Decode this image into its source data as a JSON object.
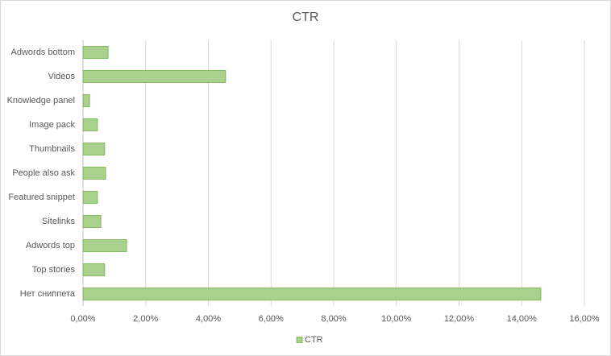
{
  "chart_data": {
    "type": "bar",
    "orientation": "horizontal",
    "title": "CTR",
    "categories": [
      "Adwords bottom",
      "Videos",
      "Knowledge panel",
      "Image pack",
      "Thumbnails",
      "People also ask",
      "Featured snippet",
      "Sitelinks",
      "Adwords top",
      "Top stories",
      "Нет сниппета"
    ],
    "series": [
      {
        "name": "CTR",
        "color": "#a9d18e",
        "edge_color": "#70ad47",
        "values": [
          0.8,
          4.55,
          0.21,
          0.46,
          0.69,
          0.72,
          0.46,
          0.57,
          1.39,
          0.69,
          14.61
        ]
      }
    ],
    "xlim": [
      0,
      16
    ],
    "xticks": [
      {
        "value": 0,
        "label": "0,00%"
      },
      {
        "value": 2,
        "label": "2,00%"
      },
      {
        "value": 4,
        "label": "4,00%"
      },
      {
        "value": 6,
        "label": "6,00%"
      },
      {
        "value": 8,
        "label": "8,00%"
      },
      {
        "value": 10,
        "label": "10,00%"
      },
      {
        "value": 12,
        "label": "12,00%"
      },
      {
        "value": 14,
        "label": "14,00%"
      },
      {
        "value": 16,
        "label": "16,00%"
      }
    ],
    "grid": true,
    "legend": "bottom"
  }
}
